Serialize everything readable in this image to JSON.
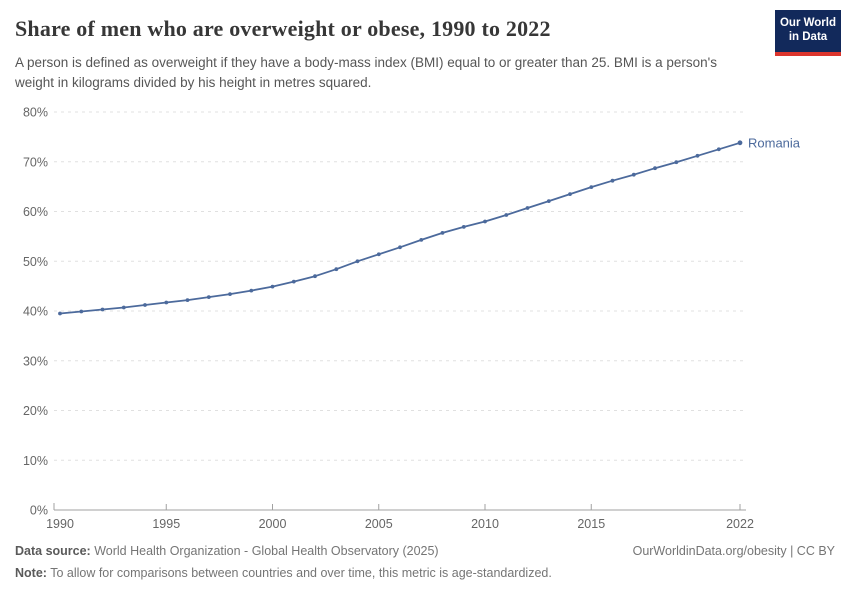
{
  "header": {
    "title": "Share of men who are overweight or obese, 1990 to 2022",
    "subtitle": "A person is defined as overweight if they have a body-mass index (BMI) equal to or greater than 25. BMI is a person's weight in kilograms divided by his height in metres squared.",
    "logo": {
      "line1": "Our World",
      "line2": "in Data",
      "bg_color": "#12295b",
      "stripe_color": "#dc352d"
    }
  },
  "chart_data": {
    "type": "line",
    "title": "Share of men who are overweight or obese, 1990 to 2022",
    "x": [
      1990,
      1991,
      1992,
      1993,
      1994,
      1995,
      1996,
      1997,
      1998,
      1999,
      2000,
      2001,
      2002,
      2003,
      2004,
      2005,
      2006,
      2007,
      2008,
      2009,
      2010,
      2011,
      2012,
      2013,
      2014,
      2015,
      2016,
      2017,
      2018,
      2019,
      2020,
      2021,
      2022
    ],
    "series": [
      {
        "name": "Romania",
        "color": "#4c6a9c",
        "values": [
          39.5,
          39.9,
          40.3,
          40.7,
          41.2,
          41.7,
          42.2,
          42.8,
          43.4,
          44.1,
          44.9,
          45.9,
          47.0,
          48.4,
          50.0,
          51.4,
          52.8,
          54.3,
          55.7,
          56.9,
          58.0,
          59.3,
          60.7,
          62.1,
          63.5,
          64.9,
          66.2,
          67.4,
          68.7,
          69.9,
          71.2,
          72.5,
          73.8
        ]
      }
    ],
    "ylim": [
      0,
      80
    ],
    "y_unit": "%",
    "y_ticks": [
      {
        "value": 0,
        "label": "0%"
      },
      {
        "value": 10,
        "label": "10%"
      },
      {
        "value": 20,
        "label": "20%"
      },
      {
        "value": 30,
        "label": "30%"
      },
      {
        "value": 40,
        "label": "40%"
      },
      {
        "value": 50,
        "label": "50%"
      },
      {
        "value": 60,
        "label": "60%"
      },
      {
        "value": 70,
        "label": "70%"
      },
      {
        "value": 80,
        "label": "80%"
      }
    ],
    "x_ticks": [
      {
        "value": 1990,
        "label": "1990"
      },
      {
        "value": 1995,
        "label": "1995"
      },
      {
        "value": 2000,
        "label": "2000"
      },
      {
        "value": 2005,
        "label": "2005"
      },
      {
        "value": 2010,
        "label": "2010"
      },
      {
        "value": 2015,
        "label": "2015"
      },
      {
        "value": 2022,
        "label": "2022"
      }
    ],
    "grid": "horizontal-dashed",
    "legend_position": "end-of-line",
    "colors": {
      "grid": "#e0e0e0",
      "axis": "#a1a1a1",
      "tick_text": "#666666"
    }
  },
  "footer": {
    "data_source_label": "Data source:",
    "data_source_value": "World Health Organization - Global Health Observatory (2025)",
    "credit": "OurWorldinData.org/obesity | CC BY",
    "note_label": "Note:",
    "note_value": "To allow for comparisons between countries and over time, this metric is age-standardized."
  }
}
